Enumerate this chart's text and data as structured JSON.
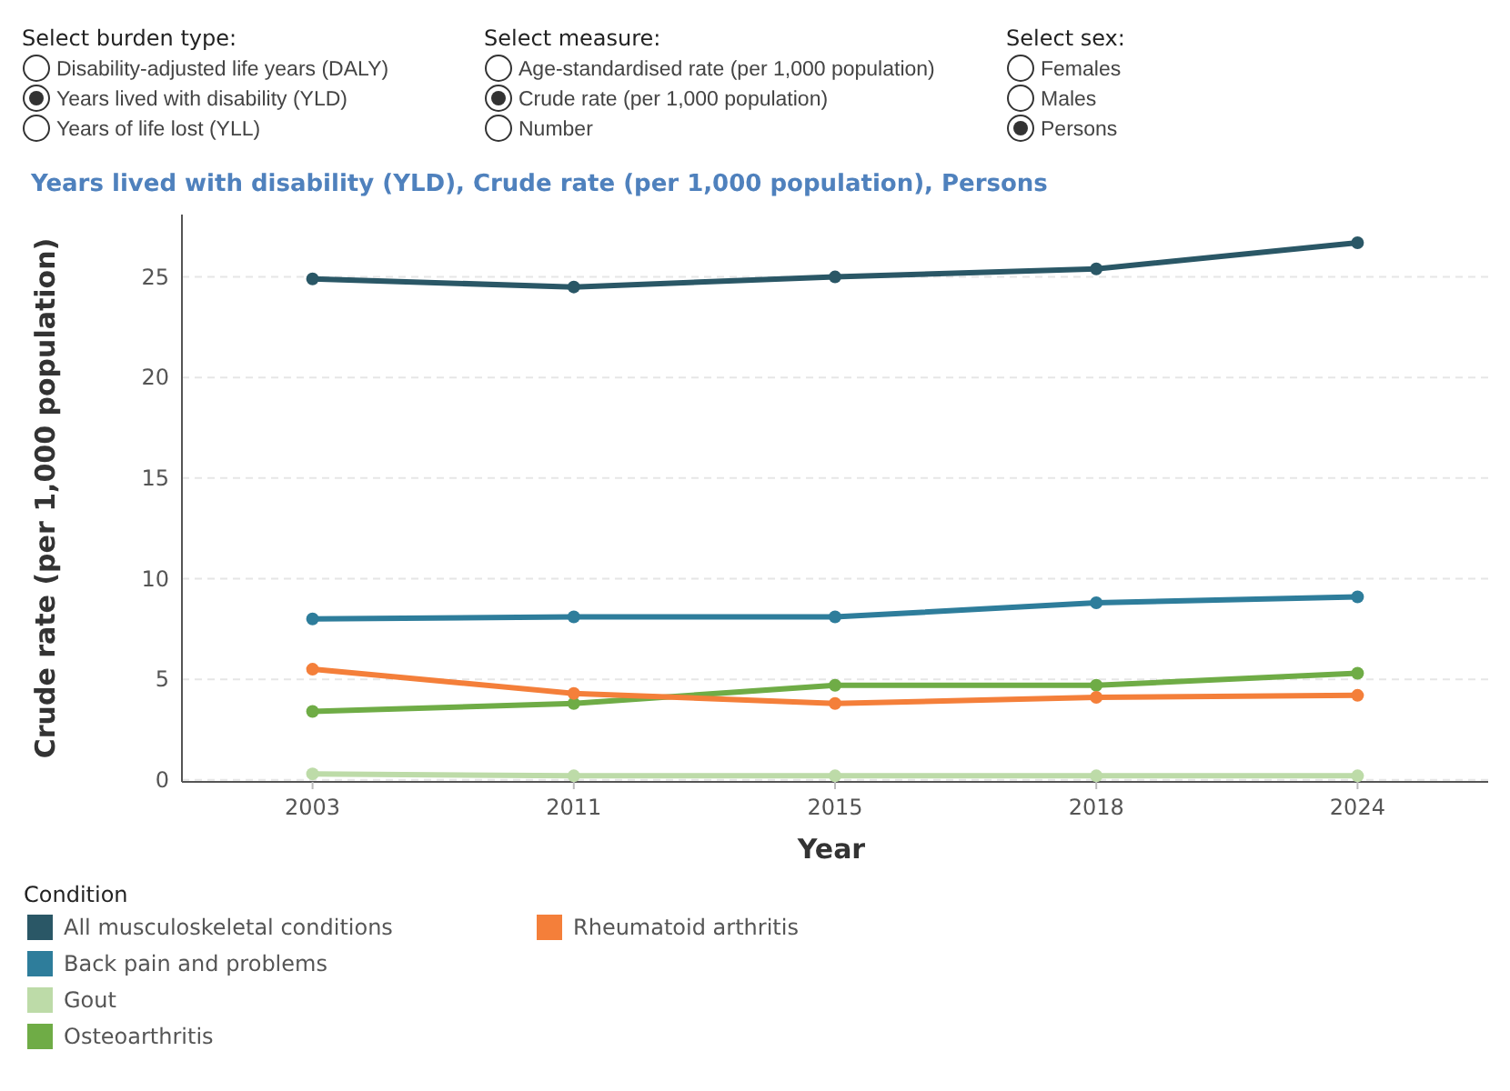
{
  "chart_data": {
    "type": "line",
    "title": "Years lived with disability (YLD), Crude rate (per 1,000 population), Persons",
    "xlabel": "Year",
    "ylabel": "Crude rate (per 1,000 population)",
    "legend_title": "Condition",
    "annotations": [
      "Select burden type:",
      "Disability-adjusted life years (DALY)",
      "Years lived with disability (YLD)",
      "Years of life lost (YLL)",
      "Select measure:",
      "Age-standardised rate (per 1,000 population)",
      "Crude rate (per 1,000 population)",
      "Number",
      "Select sex:",
      "Females",
      "Males",
      "Persons"
    ],
    "categories": [
      "2003",
      "2011",
      "2015",
      "2018",
      "2024"
    ],
    "series": [
      {
        "name": "All musculoskeletal conditions",
        "color": "#2a5766",
        "values": [
          24.9,
          24.5,
          25.0,
          25.4,
          26.7
        ]
      },
      {
        "name": "Back pain and problems",
        "color": "#2e7d9b",
        "values": [
          8.0,
          8.1,
          8.1,
          8.8,
          9.1
        ]
      },
      {
        "name": "Gout",
        "color": "#bddba8",
        "values": [
          0.3,
          0.2,
          0.2,
          0.2,
          0.2
        ]
      },
      {
        "name": "Osteoarthritis",
        "color": "#6fac46",
        "values": [
          3.4,
          3.8,
          4.7,
          4.7,
          5.3
        ]
      },
      {
        "name": "Rheumatoid arthritis",
        "color": "#f47f3a",
        "values": [
          5.5,
          4.3,
          3.8,
          4.1,
          4.2
        ]
      }
    ],
    "ylim": [
      -0.1,
      28.1
    ],
    "yticks": [
      0,
      5,
      10,
      15,
      20,
      25
    ],
    "grid": "y",
    "legend": "bottom left",
    "marker": "circle",
    "line_style": "solid"
  }
}
